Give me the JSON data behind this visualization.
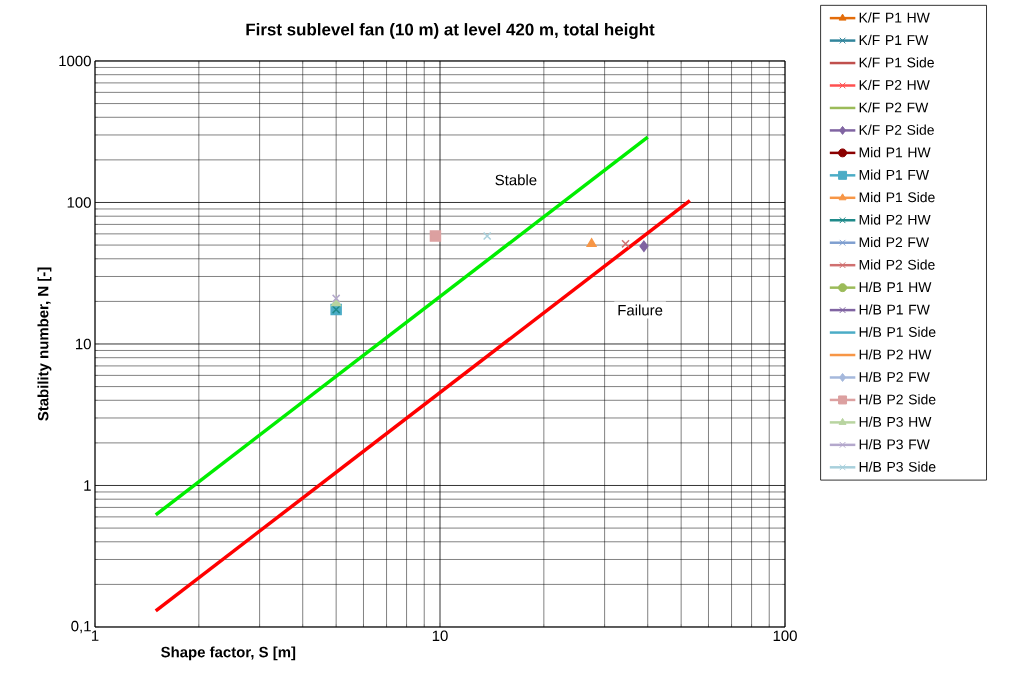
{
  "chart_data": {
    "type": "scatter",
    "title": "First sublevel fan (10 m) at level 420 m, total height",
    "xlabel": "Shape factor, S [m]",
    "ylabel": "Stability number, N [-]",
    "log": "xy",
    "grid": true,
    "legend": "right",
    "xlim": [
      1,
      100
    ],
    "ylim": [
      0.1,
      1000
    ],
    "xticks": [
      1,
      10,
      100
    ],
    "yticks": [
      {
        "value": 0.1,
        "label": "0,1"
      },
      1,
      10,
      100,
      1000
    ],
    "annotations": [
      "Stable",
      "Failure"
    ],
    "series": [
      {
        "type": "line",
        "color": "#00ee00",
        "marker": "none",
        "x": [
          1.5,
          40
        ],
        "values": [
          0.62,
          290
        ]
      },
      {
        "type": "line",
        "color": "#ff0000",
        "marker": "none",
        "x": [
          1.5,
          53
        ],
        "values": [
          0.13,
          103
        ]
      },
      {
        "name": "K/F P1 HW",
        "color": "#e36c09",
        "marker": "triangle"
      },
      {
        "name": "K/F P1 FW",
        "color": "#31859c",
        "marker": "cross"
      },
      {
        "name": "K/F P1 Side",
        "color": "#c0504d",
        "marker": "none"
      },
      {
        "name": "K/F P2 HW",
        "color": "#ff5050",
        "marker": "cross"
      },
      {
        "name": "K/F P2 FW",
        "color": "#9bbb59",
        "marker": "none"
      },
      {
        "name": "K/F P2 Side",
        "color": "#8064a2",
        "marker": "diamond",
        "x": [
          39
        ],
        "values": [
          49
        ]
      },
      {
        "name": "Mid P1 HW",
        "color": "#8b0000",
        "marker": "circle"
      },
      {
        "name": "Mid P1 FW",
        "color": "#4bacc6",
        "marker": "square",
        "x": [
          5
        ],
        "values": [
          17.5
        ]
      },
      {
        "name": "Mid P1 Side",
        "color": "#f79646",
        "marker": "triangle",
        "x": [
          27.5
        ],
        "values": [
          51
        ]
      },
      {
        "name": "Mid P2 HW",
        "color": "#1f8a8a",
        "marker": "cross",
        "x": [
          5
        ],
        "values": [
          17.5
        ]
      },
      {
        "name": "Mid P2 FW",
        "color": "#7f9fd0",
        "marker": "cross"
      },
      {
        "name": "Mid P2 Side",
        "color": "#d07070",
        "marker": "cross",
        "x": [
          34.5
        ],
        "values": [
          51
        ]
      },
      {
        "name": "H/B P1 HW",
        "color": "#9bbb59",
        "marker": "circle"
      },
      {
        "name": "H/B P1 FW",
        "color": "#8064a2",
        "marker": "cross"
      },
      {
        "name": "H/B P1 Side",
        "color": "#4bacc6",
        "marker": "none"
      },
      {
        "name": "H/B P2 HW",
        "color": "#f79646",
        "marker": "none"
      },
      {
        "name": "H/B P2 FW",
        "color": "#a5b8dc",
        "marker": "diamond"
      },
      {
        "name": "H/B P2 Side",
        "color": "#dca0a0",
        "marker": "square",
        "x": [
          9.7
        ],
        "values": [
          58
        ]
      },
      {
        "name": "H/B P3 HW",
        "color": "#b8d4a0",
        "marker": "triangle",
        "x": [
          5
        ],
        "values": [
          19.5
        ]
      },
      {
        "name": "H/B P3 FW",
        "color": "#b4a8cc",
        "marker": "cross",
        "x": [
          5
        ],
        "values": [
          21
        ]
      },
      {
        "name": "H/B P3 Side",
        "color": "#a8d0dc",
        "marker": "cross",
        "x": [
          13.7
        ],
        "values": [
          58
        ]
      }
    ]
  }
}
